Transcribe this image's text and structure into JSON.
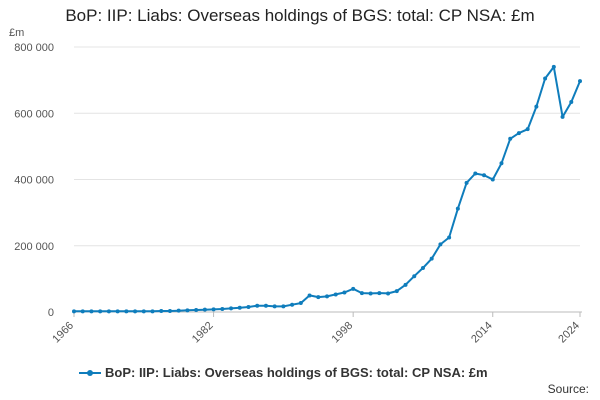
{
  "chart_data": {
    "type": "line",
    "title": "BoP: IIP: Liabs: Overseas holdings of BGS: total: CP NSA: £m",
    "y_unit": "£m",
    "xlabel": "",
    "ylabel": "",
    "xlim": [
      1966,
      2024
    ],
    "ylim": [
      0,
      800000
    ],
    "y_ticks": [
      "0",
      "200 000",
      "400 000",
      "600 000",
      "800 000"
    ],
    "y_tick_values": [
      0,
      200000,
      400000,
      600000,
      800000
    ],
    "x_ticks": [
      "1966",
      "1982",
      "1998",
      "2014",
      "2024"
    ],
    "x_tick_values": [
      1966,
      1982,
      1998,
      2014,
      2024
    ],
    "grid": "horizontal",
    "legend_position": "bottom",
    "series": [
      {
        "name": "BoP: IIP: Liabs: Overseas holdings of BGS: total: CP NSA: £m",
        "color": "#0f7dbc",
        "x": [
          1966,
          1967,
          1968,
          1969,
          1970,
          1971,
          1972,
          1973,
          1974,
          1975,
          1976,
          1977,
          1978,
          1979,
          1980,
          1981,
          1982,
          1983,
          1984,
          1985,
          1986,
          1987,
          1988,
          1989,
          1990,
          1991,
          1992,
          1993,
          1994,
          1995,
          1996,
          1997,
          1998,
          1999,
          2000,
          2001,
          2002,
          2003,
          2004,
          2005,
          2006,
          2007,
          2008,
          2009,
          2010,
          2011,
          2012,
          2013,
          2014,
          2015,
          2016,
          2017,
          2018,
          2019,
          2020,
          2021,
          2022,
          2023,
          2024
        ],
        "values": [
          2000,
          2000,
          2000,
          2000,
          2000,
          2000,
          2000,
          2000,
          2000,
          2000,
          3000,
          3000,
          4000,
          5000,
          6000,
          7000,
          8000,
          9000,
          11000,
          13000,
          15000,
          19000,
          19000,
          17000,
          17000,
          22000,
          27000,
          50000,
          45000,
          47000,
          53000,
          59000,
          70000,
          57000,
          56000,
          57000,
          56000,
          63000,
          82000,
          108000,
          133000,
          161000,
          204000,
          225000,
          312000,
          390000,
          418000,
          413000,
          400000,
          449000,
          523000,
          540000,
          552000,
          620000,
          705000,
          740000,
          589000,
          634000,
          697000
        ]
      }
    ]
  },
  "source_label": "Source:"
}
